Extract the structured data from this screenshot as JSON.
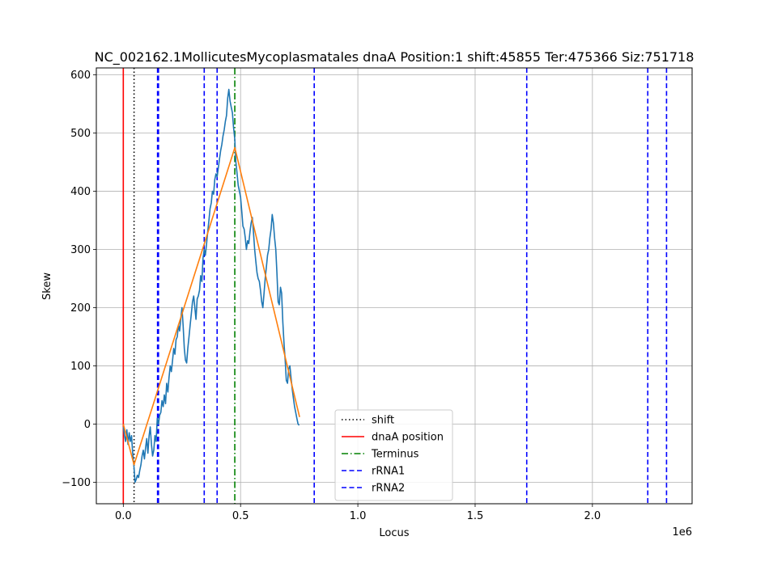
{
  "chart_data": {
    "type": "line",
    "title": "NC_002162.1MollicutesMycoplasmatales dnaA Position:1 shift:45855 Ter:475366 Siz:751718",
    "xlabel": "Locus",
    "ylabel": "Skew",
    "x_offset_text": "1e6",
    "xlim": [
      -115000,
      2425000
    ],
    "ylim": [
      -137,
      612
    ],
    "x_ticks": [
      0,
      500000,
      1000000,
      1500000,
      2000000
    ],
    "x_tick_labels": [
      "0.0",
      "0.5",
      "1.0",
      "1.5",
      "2.0"
    ],
    "y_ticks": [
      -100,
      0,
      100,
      200,
      300,
      400,
      500,
      600
    ],
    "y_tick_labels": [
      "−100",
      "0",
      "100",
      "200",
      "300",
      "400",
      "500",
      "600"
    ],
    "grid": true,
    "legend_position": "bottom-center",
    "series": [
      {
        "role": "cumulative-skew",
        "color": "#1f77b4",
        "x": [
          0,
          5000,
          10000,
          15000,
          20000,
          25000,
          30000,
          35000,
          40000,
          45855,
          50000,
          55000,
          60000,
          65000,
          70000,
          75000,
          80000,
          85000,
          90000,
          95000,
          100000,
          105000,
          110000,
          115000,
          120000,
          125000,
          130000,
          135000,
          140000,
          145000,
          150000,
          155000,
          160000,
          165000,
          170000,
          175000,
          180000,
          185000,
          190000,
          195000,
          200000,
          205000,
          210000,
          215000,
          220000,
          225000,
          230000,
          235000,
          240000,
          245000,
          250000,
          255000,
          260000,
          265000,
          270000,
          275000,
          280000,
          285000,
          290000,
          295000,
          300000,
          305000,
          310000,
          315000,
          320000,
          325000,
          330000,
          335000,
          340000,
          345000,
          350000,
          355000,
          360000,
          365000,
          370000,
          375000,
          380000,
          385000,
          390000,
          395000,
          400000,
          405000,
          410000,
          415000,
          420000,
          425000,
          430000,
          435000,
          440000,
          445000,
          450000,
          455000,
          460000,
          465000,
          470000,
          475000,
          480000,
          485000,
          490000,
          495000,
          500000,
          505000,
          510000,
          515000,
          520000,
          525000,
          530000,
          535000,
          540000,
          545000,
          550000,
          555000,
          560000,
          565000,
          570000,
          575000,
          580000,
          585000,
          590000,
          595000,
          600000,
          605000,
          610000,
          615000,
          620000,
          625000,
          630000,
          635000,
          640000,
          645000,
          650000,
          655000,
          660000,
          665000,
          670000,
          675000,
          680000,
          685000,
          690000,
          695000,
          700000,
          705000,
          710000,
          715000,
          720000,
          725000,
          730000,
          735000,
          740000,
          745000,
          750000
        ],
        "y": [
          -5,
          -20,
          -30,
          -10,
          -35,
          -15,
          -30,
          -20,
          -50,
          -75,
          -100,
          -95,
          -88,
          -92,
          -80,
          -70,
          -55,
          -45,
          -60,
          -40,
          -25,
          -50,
          -20,
          -5,
          -35,
          -55,
          -45,
          -20,
          -30,
          10,
          0,
          15,
          20,
          40,
          30,
          50,
          35,
          70,
          55,
          80,
          100,
          90,
          110,
          130,
          120,
          145,
          150,
          170,
          160,
          180,
          200,
          170,
          130,
          110,
          105,
          130,
          150,
          170,
          190,
          210,
          220,
          200,
          180,
          215,
          220,
          230,
          255,
          245,
          285,
          300,
          290,
          310,
          330,
          350,
          370,
          380,
          400,
          395,
          420,
          430,
          425,
          440,
          455,
          470,
          480,
          495,
          505,
          520,
          530,
          560,
          575,
          555,
          545,
          535,
          510,
          490,
          450,
          430,
          410,
          400,
          390,
          365,
          340,
          335,
          320,
          300,
          315,
          310,
          330,
          345,
          355,
          330,
          300,
          280,
          260,
          250,
          245,
          230,
          210,
          200,
          225,
          250,
          270,
          290,
          300,
          320,
          335,
          360,
          345,
          320,
          300,
          260,
          210,
          205,
          235,
          225,
          175,
          140,
          110,
          75,
          70,
          95,
          100,
          80,
          60,
          45,
          30,
          20,
          10,
          0,
          -2
        ]
      },
      {
        "role": "model-fit",
        "color": "#ff7f0e",
        "x": [
          0,
          45855,
          475366,
          751718
        ],
        "y": [
          0,
          -70,
          475,
          12
        ]
      }
    ],
    "vlines": [
      {
        "name": "shift",
        "x": 45855,
        "color": "#000000",
        "style": "dotted"
      },
      {
        "name": "dnaA position",
        "x": 1,
        "color": "#ff0000",
        "style": "solid"
      },
      {
        "name": "Terminus",
        "x": 475366,
        "color": "#008000",
        "style": "dashdot"
      },
      {
        "name": "rRNA1",
        "x": 146000,
        "color": "#0000ff",
        "style": "dashed"
      },
      {
        "name": "rRNA1",
        "x": 345000,
        "color": "#0000ff",
        "style": "dashed"
      },
      {
        "name": "rRNA1",
        "x": 400000,
        "color": "#0000ff",
        "style": "dashed"
      },
      {
        "name": "rRNA1",
        "x": 814000,
        "color": "#0000ff",
        "style": "dashed"
      },
      {
        "name": "rRNA1",
        "x": 1720000,
        "color": "#0000ff",
        "style": "dashed"
      },
      {
        "name": "rRNA2",
        "x": 150000,
        "color": "#0000ff",
        "style": "dashed"
      },
      {
        "name": "rRNA2",
        "x": 2236000,
        "color": "#0000ff",
        "style": "dashed"
      },
      {
        "name": "rRNA2",
        "x": 2316000,
        "color": "#0000ff",
        "style": "dashed"
      }
    ],
    "legend": [
      {
        "label": "shift",
        "color": "#000000",
        "style": "dotted"
      },
      {
        "label": "dnaA position",
        "color": "#ff0000",
        "style": "solid"
      },
      {
        "label": "Terminus",
        "color": "#008000",
        "style": "dashdot"
      },
      {
        "label": "rRNA1",
        "color": "#0000ff",
        "style": "dashed"
      },
      {
        "label": "rRNA2",
        "color": "#0000ff",
        "style": "dashed"
      }
    ]
  }
}
